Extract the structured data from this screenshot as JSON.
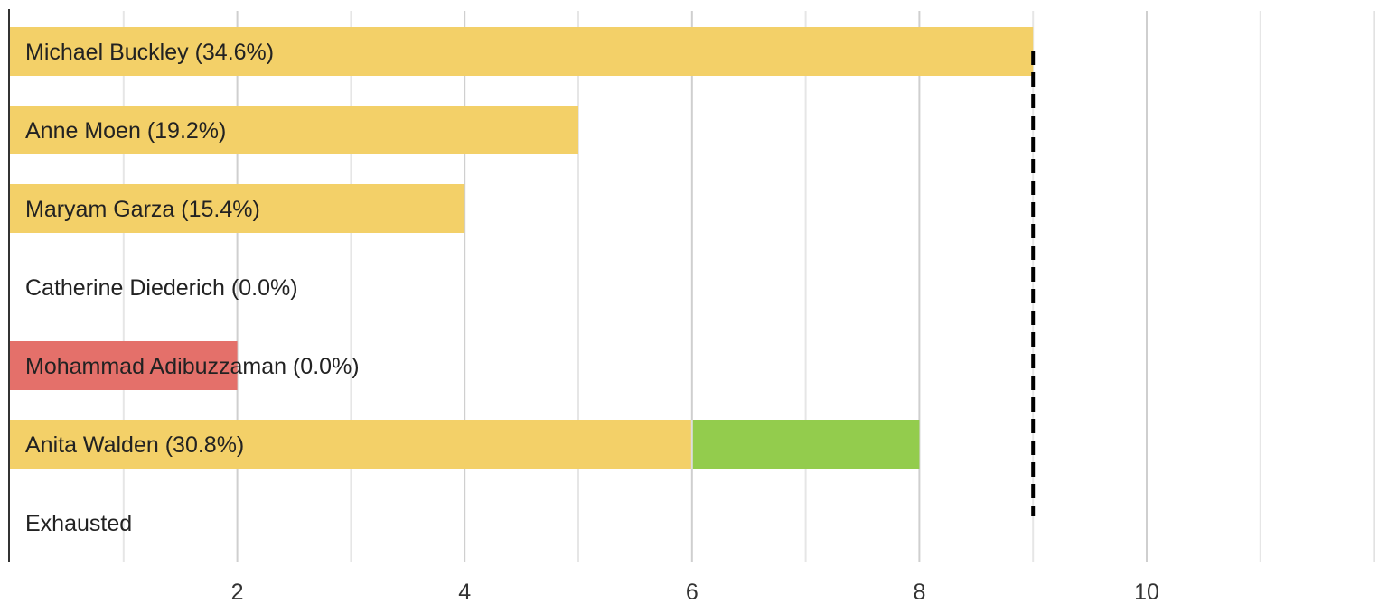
{
  "chart_data": {
    "type": "bar",
    "orientation": "horizontal",
    "stacked": true,
    "categories": [
      "Michael Buckley (34.6%)",
      "Anne Moen (19.2%)",
      "Maryam Garza (15.4%)",
      "Catherine Diederich (0.0%)",
      "Mohammad Adibuzzaman (0.0%)",
      "Anita Walden (30.8%)",
      "Exhausted"
    ],
    "series": [
      {
        "color": "#f3d068",
        "values": [
          9,
          5,
          4,
          0,
          0,
          6,
          0
        ]
      },
      {
        "color": "#e4706a",
        "values": [
          0,
          0,
          0,
          0,
          2,
          0,
          0
        ]
      },
      {
        "color": "#93cc4d",
        "values": [
          0,
          0,
          0,
          0,
          0,
          2,
          0
        ]
      }
    ],
    "x_ticks": [
      2,
      4,
      6,
      8,
      10
    ],
    "xlim": [
      0,
      12
    ],
    "threshold": 9,
    "grid": true,
    "title": "",
    "xlabel": "",
    "ylabel": ""
  }
}
